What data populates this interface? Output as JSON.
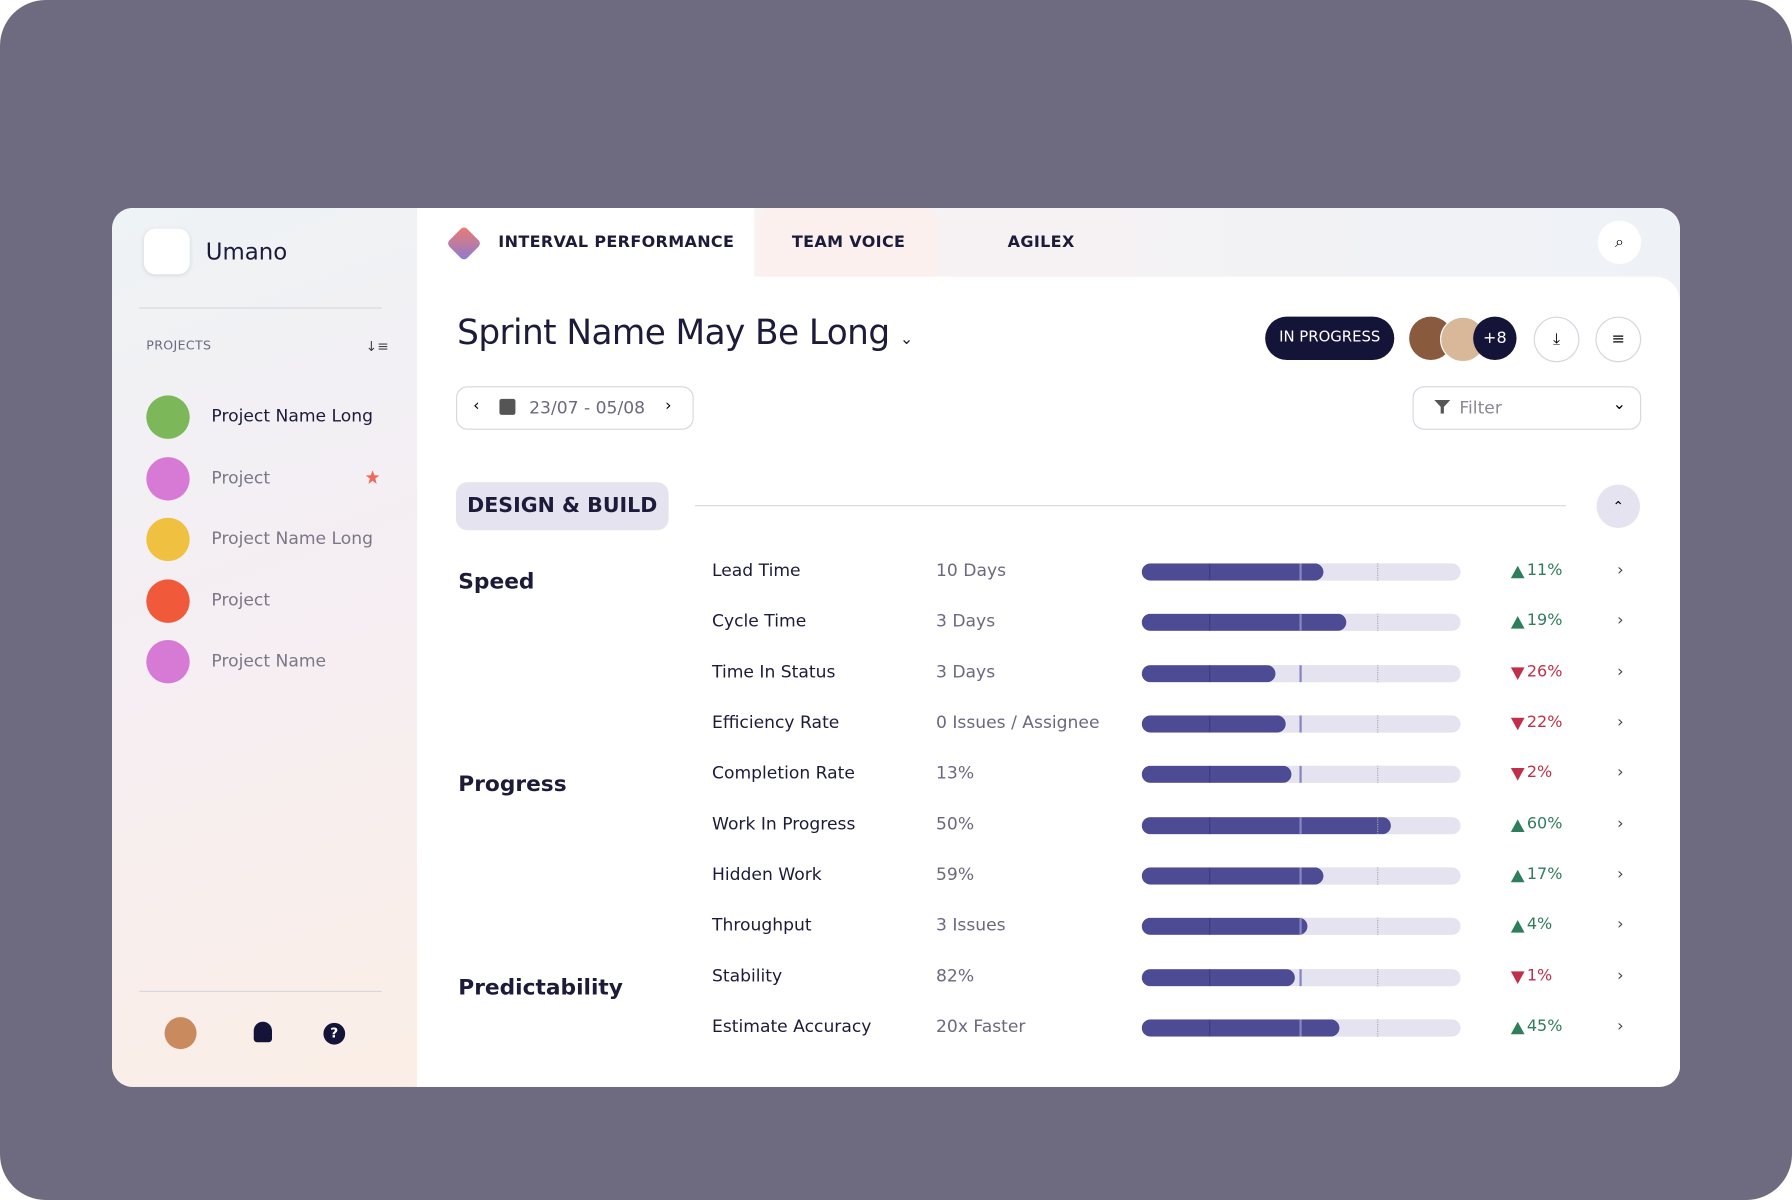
{
  "sidebar": {
    "brand": "Umano",
    "projects_label": "PROJECTS",
    "projects": [
      {
        "name": "Project Name Long",
        "starred": false
      },
      {
        "name": "Project",
        "starred": true
      },
      {
        "name": "Project Name Long",
        "starred": false
      },
      {
        "name": "Project",
        "starred": false
      },
      {
        "name": "Project Name",
        "starred": false
      }
    ]
  },
  "tabs": [
    "INTERVAL PERFORMANCE",
    "TEAM VOICE",
    "AGILEX"
  ],
  "header": {
    "title": "Sprint Name May Be Long",
    "status": "IN PROGRESS",
    "extra_members": "+8",
    "date_range": "23/07 - 05/08",
    "filter": "Filter"
  },
  "section": {
    "title": "DESIGN & BUILD",
    "groups": [
      {
        "name": "Speed",
        "metrics": [
          {
            "name": "Lead Time",
            "value": "10 Days",
            "bar": 57,
            "trend": "up",
            "change": "11%"
          },
          {
            "name": "Cycle Time",
            "value": "3 Days",
            "bar": 64,
            "trend": "up",
            "change": "19%"
          },
          {
            "name": "Time In Status",
            "value": "3 Days",
            "bar": 42,
            "trend": "down",
            "change": "26%"
          },
          {
            "name": "Efficiency Rate",
            "value": "0 Issues / Assignee",
            "bar": 45,
            "trend": "down",
            "change": "22%"
          }
        ]
      },
      {
        "name": "Progress",
        "metrics": [
          {
            "name": "Completion Rate",
            "value": "13%",
            "bar": 47,
            "trend": "down",
            "change": "2%"
          },
          {
            "name": "Work In Progress",
            "value": "50%",
            "bar": 78,
            "trend": "up",
            "change": "60%"
          },
          {
            "name": "Hidden Work",
            "value": "59%",
            "bar": 57,
            "trend": "up",
            "change": "17%"
          },
          {
            "name": "Throughput",
            "value": "3 Issues",
            "bar": 52,
            "trend": "up",
            "change": "4%"
          }
        ]
      },
      {
        "name": "Predictability",
        "metrics": [
          {
            "name": "Stability",
            "value": "82%",
            "bar": 48,
            "trend": "down",
            "change": "1%"
          },
          {
            "name": "Estimate Accuracy",
            "value": "20x Faster",
            "bar": 62,
            "trend": "up",
            "change": "45%"
          }
        ]
      }
    ]
  }
}
